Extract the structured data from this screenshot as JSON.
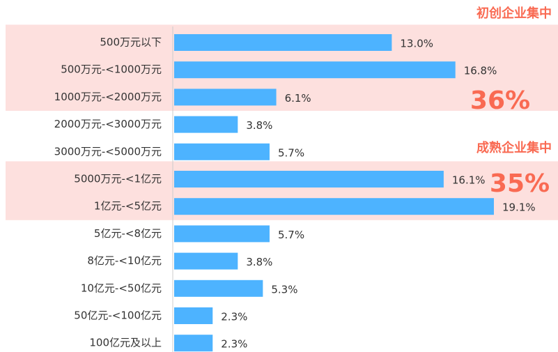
{
  "chart_data": {
    "type": "bar",
    "orientation": "horizontal",
    "categories": [
      "500万元以下",
      "500万元-<1000万元",
      "1000万元-<2000万元",
      "2000万元-<3000万元",
      "3000万元-<5000万元",
      "5000万元-<1亿元",
      "1亿元-<5亿元",
      "5亿元-<8亿元",
      "8亿元-<10亿元",
      "10亿元-<50亿元",
      "50亿元-<100亿元",
      "100亿元及以上"
    ],
    "values": [
      13.0,
      16.8,
      6.1,
      3.8,
      5.7,
      16.1,
      19.1,
      5.7,
      3.8,
      5.3,
      2.3,
      2.3
    ],
    "value_labels": [
      "13.0%",
      "16.8%",
      "6.1%",
      "3.8%",
      "5.7%",
      "16.1%",
      "19.1%",
      "5.7%",
      "3.8%",
      "5.3%",
      "2.3%",
      "2.3%"
    ],
    "color": "#4db3ff",
    "xlim": [
      0,
      20
    ],
    "annotations": [
      {
        "title": "初创企业集中",
        "share": "36%"
      },
      {
        "title": "成熟企业集中",
        "share": "35%"
      }
    ],
    "highlight_color": "#fde0de",
    "annotation_color": "#f96a52"
  }
}
